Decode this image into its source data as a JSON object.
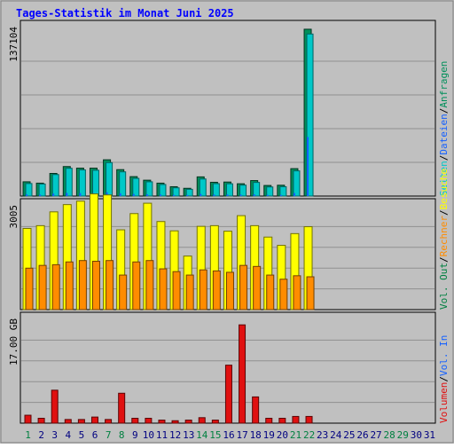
{
  "title": "Tages-Statistik im Monat Juni 2025",
  "colors": {
    "title": "#0000ff",
    "background": "#c0c0c0",
    "panel": "#c0c0c0",
    "grid": "#909090",
    "frame": "#000000",
    "anfragen": "#008f5a",
    "dateien": "#00c8c8",
    "seiten": "#1460ff",
    "besuche": "#ffff00",
    "rechner": "#ff8c00",
    "volumen": "#e01010",
    "weekend_label": "#008040",
    "weekday_label": "#000080"
  },
  "chart_data": {
    "type": "bar",
    "x": [
      "1",
      "2",
      "3",
      "4",
      "5",
      "6",
      "7",
      "8",
      "9",
      "10",
      "11",
      "12",
      "13",
      "14",
      "15",
      "16",
      "17",
      "18",
      "19",
      "20",
      "21",
      "22",
      "23",
      "24",
      "25",
      "26",
      "27",
      "28",
      "29",
      "30",
      "31"
    ],
    "weekend_days": [
      "1",
      "7",
      "8",
      "14",
      "15",
      "21",
      "22",
      "28",
      "29"
    ],
    "panels": [
      {
        "id": "top",
        "ymax_label": "137104",
        "ymax": 137104,
        "right_labels": [
          {
            "text": "Anfragen",
            "color_key": "anfragen"
          },
          {
            "text": "/",
            "color_key": "frame"
          },
          {
            "text": "Dateien",
            "color_key": "seiten"
          },
          {
            "text": "/",
            "color_key": "frame"
          },
          {
            "text": "Seiten",
            "color_key": "dateien"
          }
        ],
        "series": [
          {
            "name": "Anfragen",
            "color_key": "anfragen",
            "values": [
              11600,
              10500,
              18400,
              24000,
              22700,
              22700,
              29500,
              21500,
              15800,
              12900,
              10500,
              7600,
              6300,
              15600,
              11200,
              11400,
              10000,
              12600,
              8600,
              8800,
              22300,
              135700,
              0,
              0,
              0,
              0,
              0,
              0,
              0,
              0,
              0
            ]
          },
          {
            "name": "Dateien",
            "color_key": "dateien",
            "values": [
              10200,
              9800,
              17500,
              22600,
              21300,
              21000,
              27200,
              19700,
              14400,
              11600,
              9400,
              6700,
              5500,
              13900,
              10100,
              10000,
              8900,
              11100,
              7400,
              7600,
              20500,
              131800,
              0,
              0,
              0,
              0,
              0,
              0,
              0,
              0,
              0
            ]
          },
          {
            "name": "Seiten",
            "color_key": "seiten",
            "values": [
              1300,
              1200,
              2000,
              2500,
              2400,
              2300,
              3100,
              2200,
              1700,
              1400,
              1200,
              900,
              800,
              1700,
              1200,
              1200,
              1100,
              1400,
              900,
              900,
              2400,
              48000,
              0,
              0,
              0,
              0,
              0,
              0,
              0,
              0,
              0
            ]
          }
        ]
      },
      {
        "id": "middle",
        "ymax_label": "3005",
        "ymax": 3005,
        "right_labels": [
          {
            "text": "Besuche",
            "color_key": "besuche"
          },
          {
            "text": "/",
            "color_key": "frame"
          },
          {
            "text": "Rechner",
            "color_key": "rechner"
          },
          {
            "text": "/",
            "color_key": "frame"
          },
          {
            "text": "Vol. Out",
            "color_key": "weekend_label"
          }
        ],
        "series": [
          {
            "name": "Besuche",
            "color_key": "besuche",
            "values": [
              2350,
              2430,
              2830,
              3040,
              3140,
              3350,
              3320,
              2310,
              2780,
              3080,
              2550,
              2280,
              1550,
              2410,
              2430,
              2270,
              2720,
              2430,
              2100,
              1860,
              2200,
              2400,
              0,
              0,
              0,
              0,
              0,
              0,
              0,
              0,
              0
            ]
          },
          {
            "name": "Rechner",
            "color_key": "rechner",
            "values": [
              1200,
              1280,
              1300,
              1380,
              1420,
              1400,
              1420,
              1000,
              1380,
              1420,
              1180,
              1100,
              1000,
              1150,
              1120,
              1080,
              1280,
              1250,
              1000,
              880,
              980,
              950,
              0,
              0,
              0,
              0,
              0,
              0,
              0,
              0,
              0
            ]
          }
        ]
      },
      {
        "id": "bottom",
        "ymax_label": "17.00 GB",
        "ymax": 17,
        "right_labels": [
          {
            "text": "Vol. In",
            "color_key": "seiten"
          },
          {
            "text": "/",
            "color_key": "frame"
          },
          {
            "text": "Volumen",
            "color_key": "volumen"
          }
        ],
        "series": [
          {
            "name": "Volumen",
            "color_key": "volumen",
            "values": [
              1.3,
              0.8,
              5.4,
              0.6,
              0.6,
              1.0,
              0.6,
              4.9,
              0.8,
              0.8,
              0.5,
              0.4,
              0.5,
              0.9,
              0.5,
              9.5,
              16.1,
              4.3,
              0.8,
              0.8,
              1.1,
              1.1,
              0,
              0,
              0,
              0,
              0,
              0,
              0,
              0,
              0
            ]
          }
        ]
      }
    ]
  }
}
